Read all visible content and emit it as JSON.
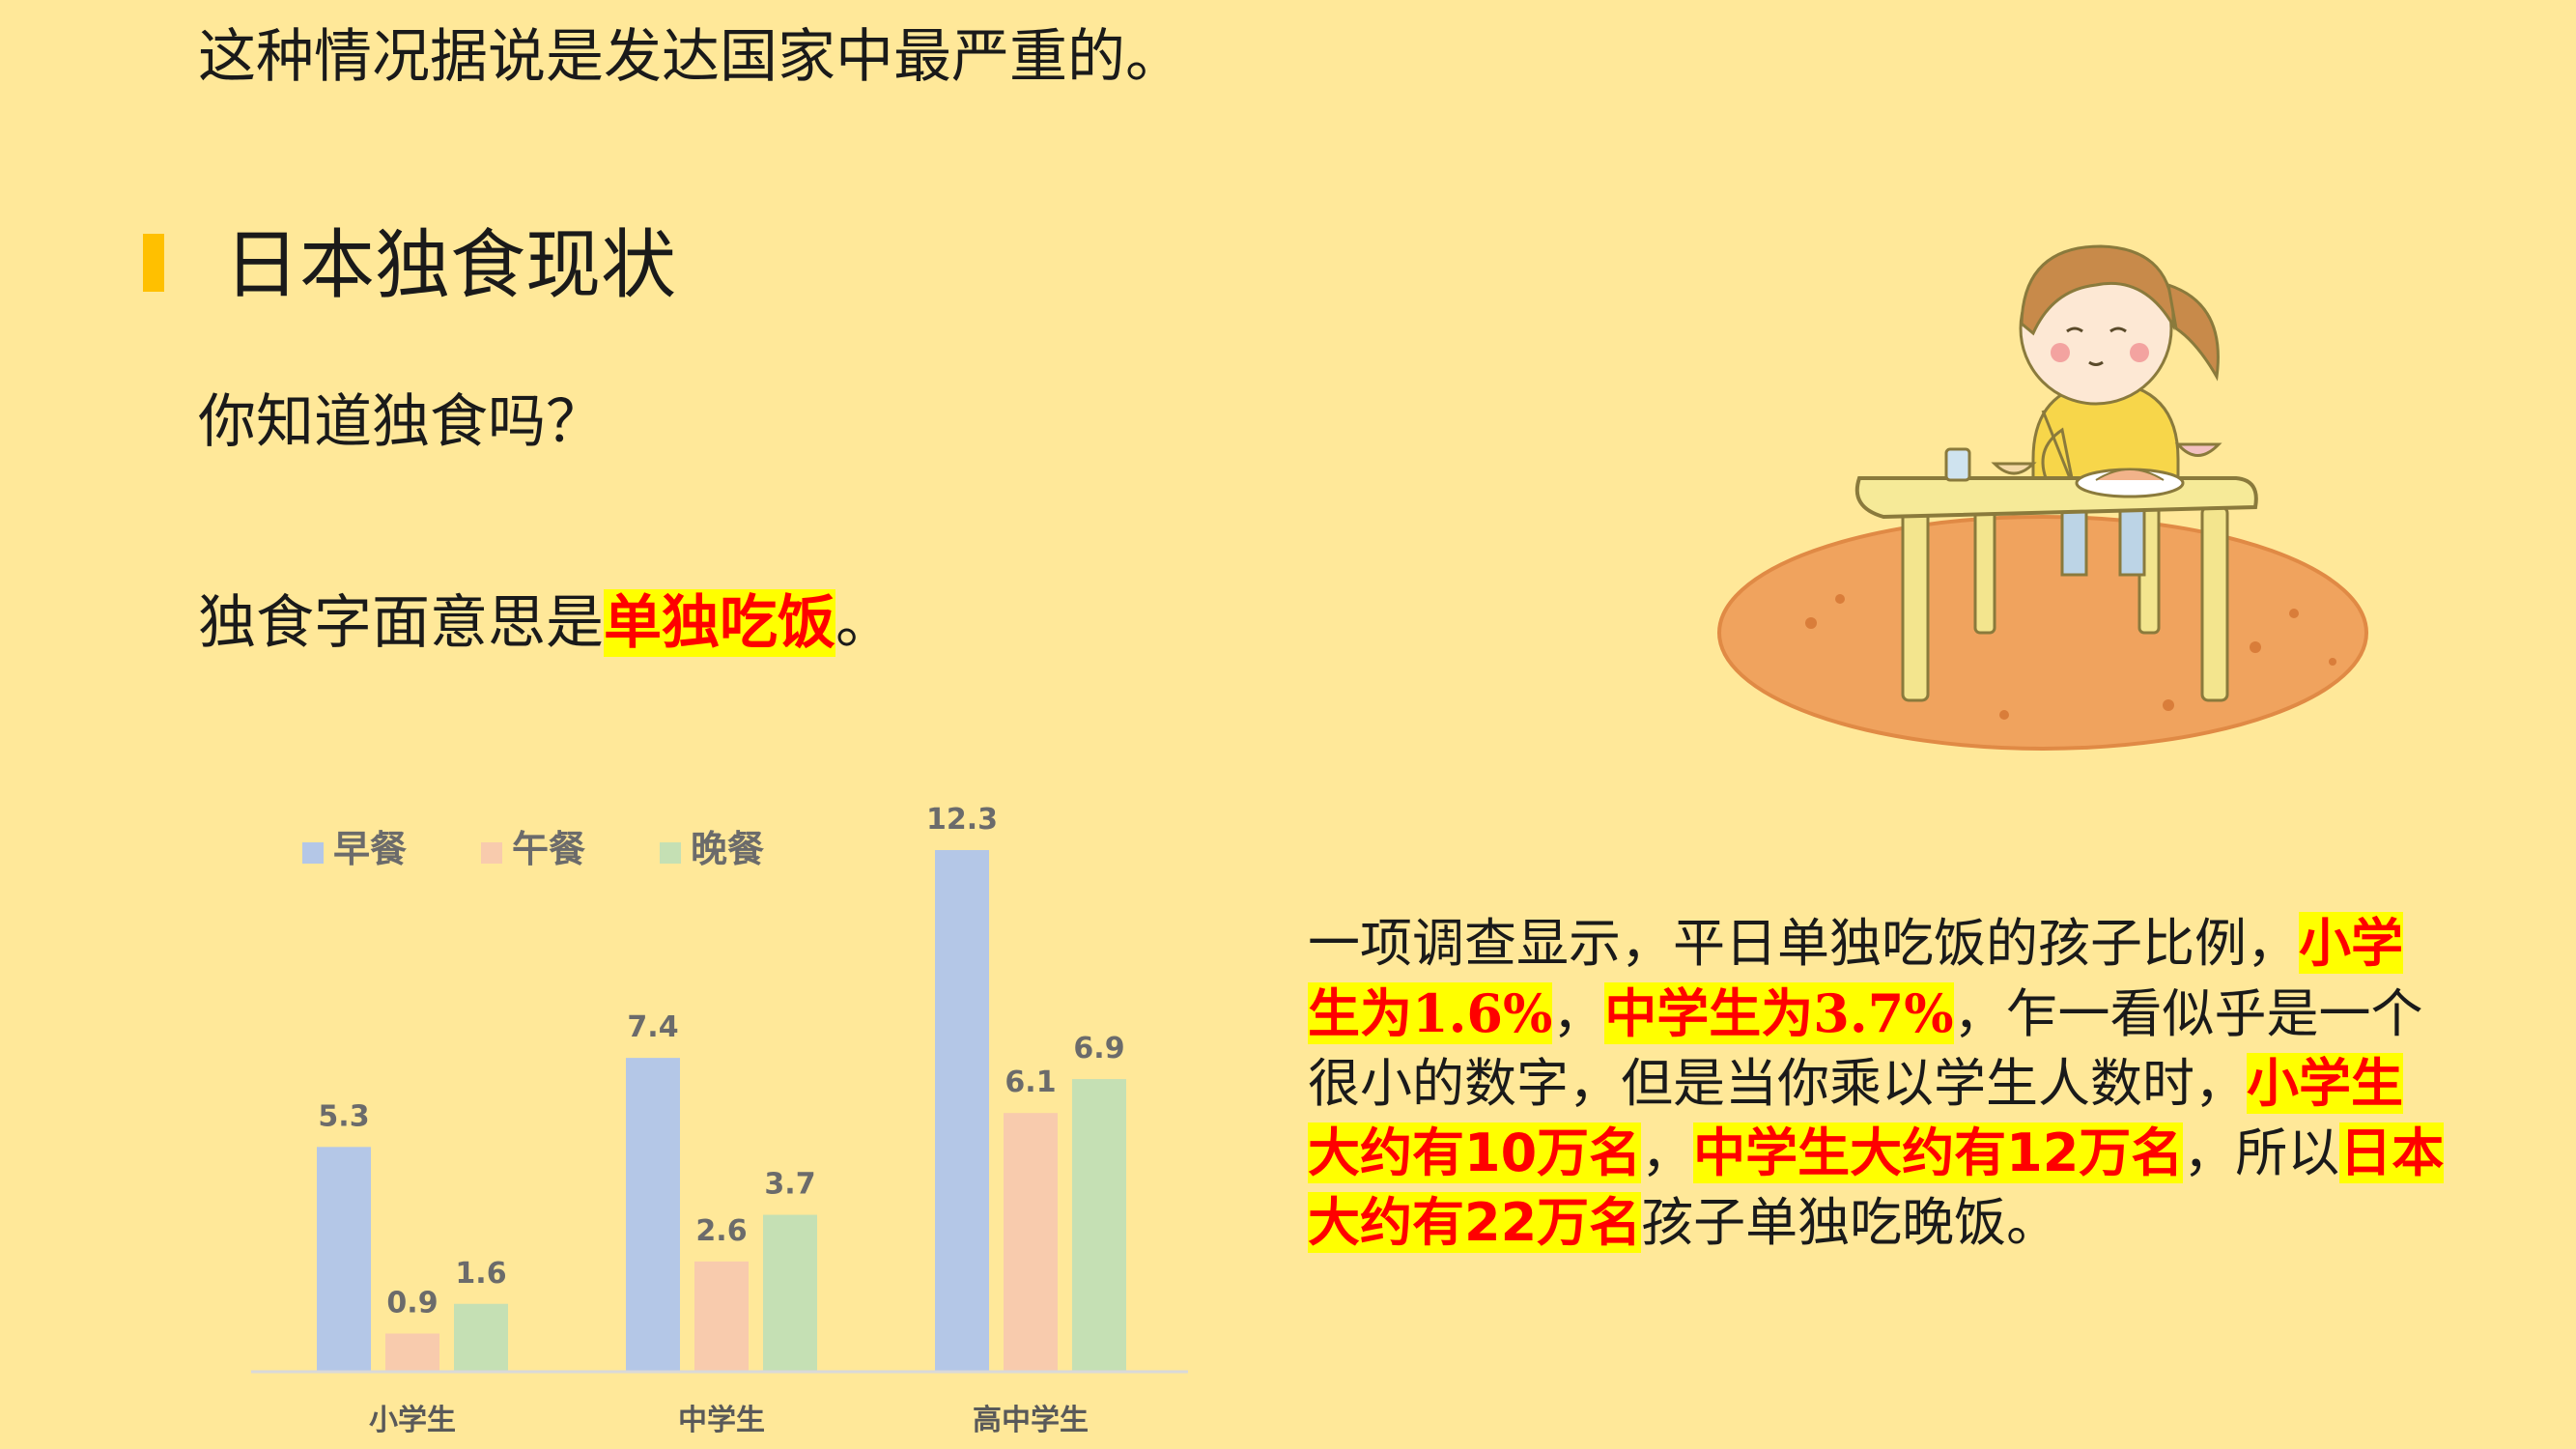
{
  "intro_line": "这种情况据说是发达国家中最严重的。",
  "section_title": "日本独食现状",
  "question": "你知道独食吗？",
  "meaning": {
    "prefix": "独食字面意思是",
    "highlight": "单独吃饭",
    "suffix": "。"
  },
  "paragraph": {
    "p1": "一项调查显示，平日单独吃饭的孩子比例，",
    "h1": "小学生为1.6%",
    "p2": "，",
    "h2": "中学生为3.7%",
    "p3": "，乍一看似乎是一个很小的数字，但是当你乘以学生人数时，",
    "h3": "小学生大约有10万名",
    "p4": "，",
    "h4": "中学生大约有12万名",
    "p5": "，所以",
    "h5": "日本大约有22万名",
    "p6": "孩子单独吃晚饭。"
  },
  "illustration": {
    "icon": "girl-eating-alone-illustration"
  },
  "chart_data": {
    "type": "bar",
    "categories": [
      "小学生",
      "中学生",
      "高中学生"
    ],
    "series": [
      {
        "name": "早餐",
        "values": [
          5.3,
          7.4,
          12.3
        ],
        "color": "#b4c7e7"
      },
      {
        "name": "午餐",
        "values": [
          0.9,
          2.6,
          6.1
        ],
        "color": "#f8cbad"
      },
      {
        "name": "晚餐",
        "values": [
          1.6,
          3.7,
          6.9
        ],
        "color": "#c5e0b4"
      }
    ],
    "ylim": [
      0,
      12.3
    ],
    "legend": "top-left",
    "grid": false,
    "data_labels": true
  }
}
